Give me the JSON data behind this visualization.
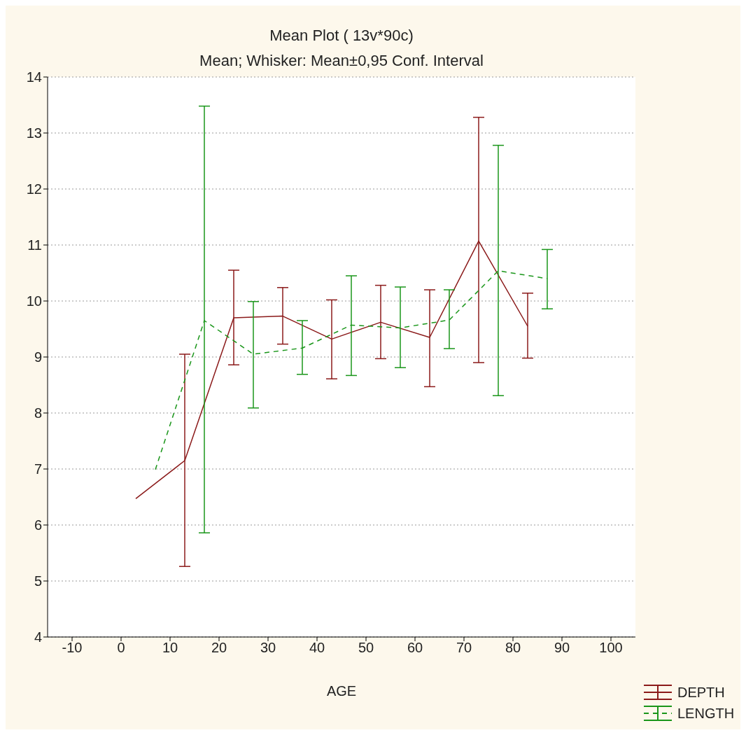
{
  "chart_data": {
    "type": "line",
    "title": "Mean Plot ( 13v*90c)",
    "subtitle": "Mean; Whisker: Mean±0,95 Conf. Interval",
    "xlabel": "AGE",
    "xlim": [
      -15,
      105
    ],
    "xticks": [
      -10,
      0,
      10,
      20,
      30,
      40,
      50,
      60,
      70,
      80,
      90,
      100
    ],
    "ylim": [
      4,
      14
    ],
    "yticks": [
      4,
      5,
      6,
      7,
      8,
      9,
      10,
      11,
      12,
      13,
      14
    ],
    "grid": "y",
    "legend": "bottom right",
    "marker": "none",
    "series": [
      {
        "name": "DEPTH",
        "color": "#8b1a1a",
        "line_style": "solid",
        "x": [
          3,
          13,
          23,
          33,
          43,
          53,
          63,
          73,
          83
        ],
        "values": [
          6.47,
          7.15,
          9.7,
          9.73,
          9.32,
          9.62,
          9.35,
          11.07,
          9.55
        ],
        "errors": [
          null,
          [
            5.26,
            9.05
          ],
          [
            8.86,
            10.55
          ],
          [
            9.23,
            10.24
          ],
          [
            8.61,
            10.02
          ],
          [
            8.97,
            10.28
          ],
          [
            8.47,
            10.2
          ],
          [
            8.9,
            13.28
          ],
          [
            8.98,
            10.14
          ]
        ]
      },
      {
        "name": "LENGTH",
        "color": "#1a961a",
        "line_style": "dashed",
        "x": [
          7,
          17,
          27,
          37,
          47,
          57,
          67,
          77,
          87
        ],
        "values": [
          6.99,
          9.65,
          9.05,
          9.16,
          9.57,
          9.52,
          9.66,
          10.54,
          10.4
        ],
        "errors": [
          null,
          [
            5.86,
            13.48
          ],
          [
            8.09,
            9.99
          ],
          [
            8.69,
            9.65
          ],
          [
            8.67,
            10.45
          ],
          [
            8.81,
            10.25
          ],
          [
            9.15,
            10.2
          ],
          [
            8.31,
            12.78
          ],
          [
            9.86,
            10.92
          ]
        ]
      }
    ]
  }
}
